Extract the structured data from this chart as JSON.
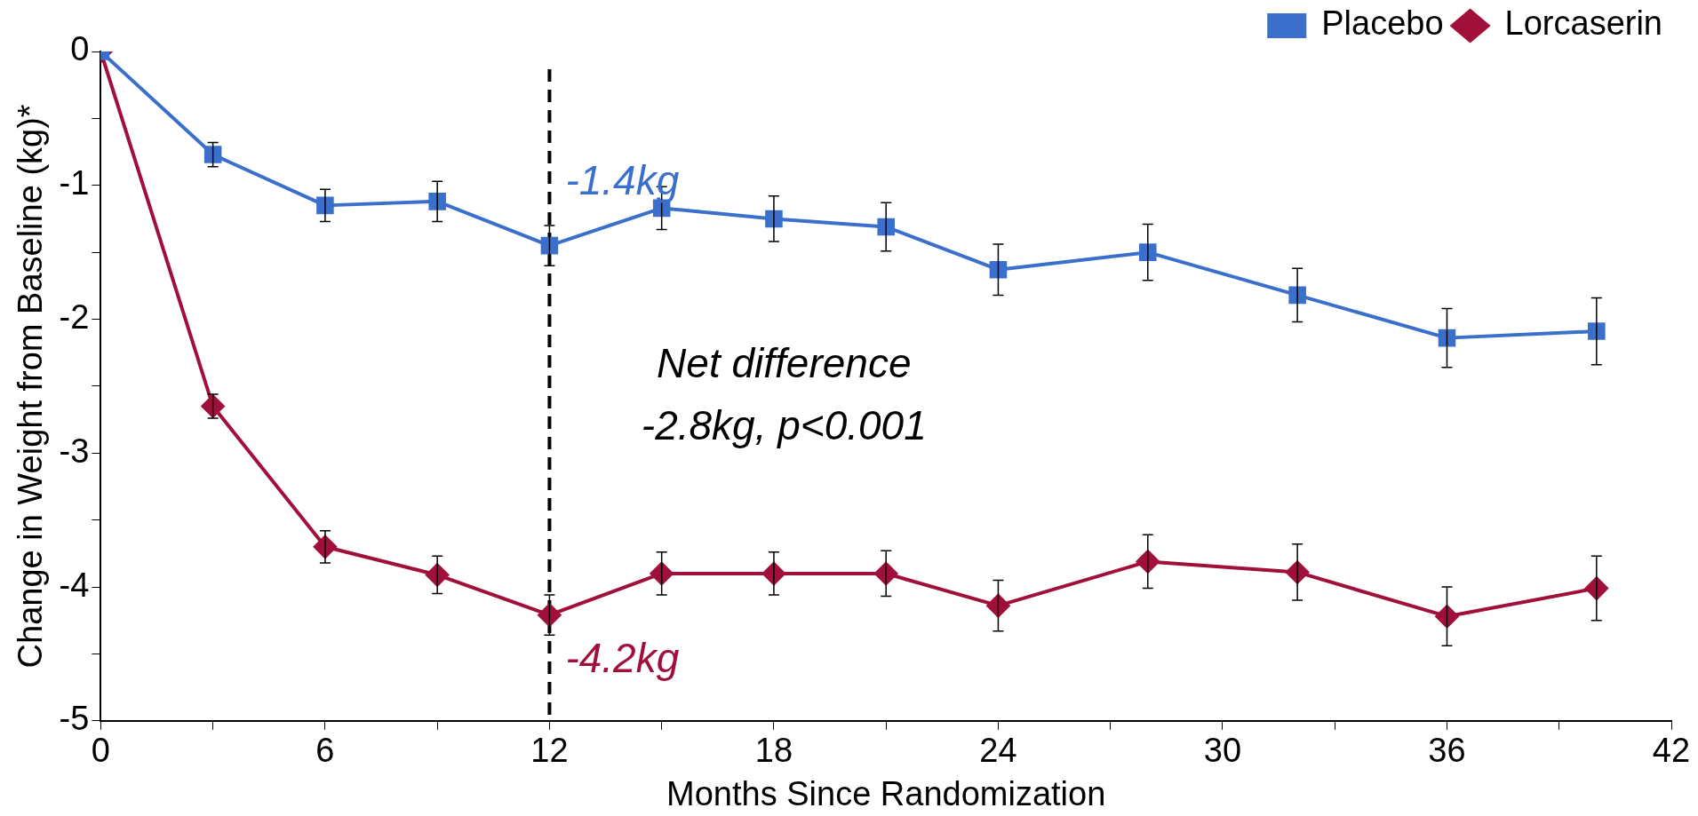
{
  "chart_data": {
    "type": "line",
    "xlabel": "Months Since Randomization",
    "ylabel": "Change in Weight from Baseline (kg)*",
    "x": [
      0,
      3,
      6,
      9,
      12,
      15,
      18,
      21,
      24,
      28,
      32,
      36,
      40
    ],
    "series": [
      {
        "name": "Placebo",
        "color": "#3b6fcc",
        "marker": "square",
        "values": [
          0,
          -0.77,
          -1.15,
          -1.12,
          -1.45,
          -1.17,
          -1.25,
          -1.31,
          -1.63,
          -1.5,
          -1.82,
          -2.14,
          -2.09
        ],
        "errors": [
          null,
          0.09,
          0.12,
          0.15,
          0.15,
          0.16,
          0.17,
          0.18,
          0.19,
          0.21,
          0.2,
          0.22,
          0.25
        ]
      },
      {
        "name": "Lorcaserin",
        "color": "#a0103a",
        "marker": "diamond",
        "values": [
          0,
          -2.65,
          -3.7,
          -3.91,
          -4.21,
          -3.9,
          -3.9,
          -3.9,
          -4.14,
          -3.81,
          -3.89,
          -4.22,
          -4.01
        ],
        "errors": [
          null,
          0.09,
          0.12,
          0.14,
          0.15,
          0.16,
          0.16,
          0.17,
          0.19,
          0.2,
          0.21,
          0.22,
          0.24
        ]
      }
    ],
    "xlim": [
      0,
      42
    ],
    "xticks": [
      0,
      {
        "value": 3,
        "label": null
      },
      6,
      {
        "value": 9,
        "label": null
      },
      12,
      {
        "value": 15,
        "label": null
      },
      18,
      {
        "value": 21,
        "label": null
      },
      24,
      {
        "value": 27,
        "label": null
      },
      30,
      {
        "value": 33,
        "label": null
      },
      36,
      {
        "value": 39,
        "label": null
      },
      42
    ],
    "ylim": [
      -5,
      0
    ],
    "yticks": [
      {
        "value": -5,
        "label": "-5"
      },
      {
        "value": -4.5,
        "label": null
      },
      {
        "value": -4,
        "label": "-4"
      },
      {
        "value": -3.5,
        "label": null
      },
      {
        "value": -3,
        "label": "-3"
      },
      {
        "value": -2.5,
        "label": null
      },
      {
        "value": -2,
        "label": "-2"
      },
      {
        "value": -1.5,
        "label": null
      },
      {
        "value": -1,
        "label": "-1"
      },
      {
        "value": -0.5,
        "label": null
      },
      0
    ],
    "ref_lines": [
      {
        "axis": "x",
        "value": 12,
        "color": "#000000",
        "line_style": "dashed"
      }
    ],
    "annotations": [
      {
        "text": "-1.4kg",
        "x": 12,
        "y": -1.4
      },
      {
        "text": "-4.2kg",
        "x": 12,
        "y": -4.2
      },
      "Net difference",
      "-2.8kg, p<0.001"
    ],
    "legend": "top right",
    "grid": false,
    "line_style": "solid"
  }
}
